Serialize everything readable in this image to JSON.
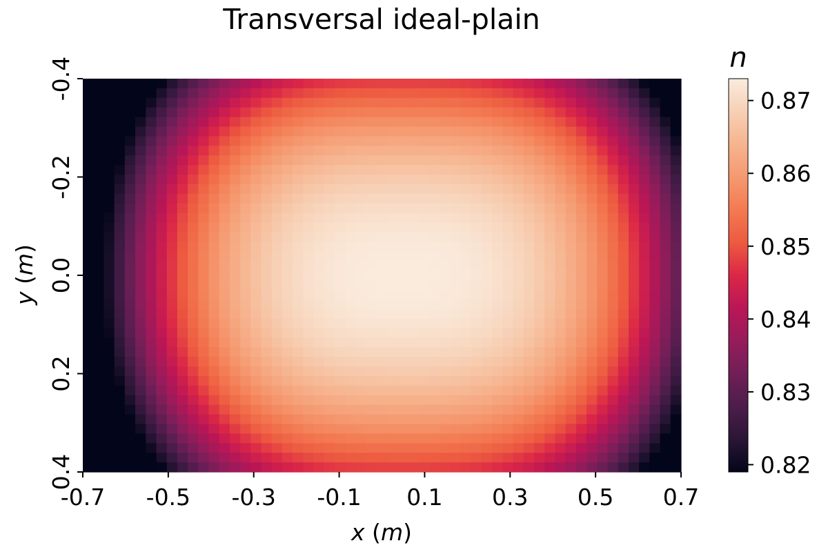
{
  "chart_data": {
    "type": "heatmap",
    "title": "Transversal ideal-plain",
    "xlabel": {
      "var": "x",
      "unit": "m"
    },
    "ylabel": {
      "var": "y",
      "unit": "m"
    },
    "x_range": [
      -0.7,
      0.7
    ],
    "y_range": [
      -0.4,
      0.4
    ],
    "y_inverted": true,
    "x_ticks": [
      -0.7,
      -0.5,
      -0.3,
      -0.1,
      0.1,
      0.3,
      0.5,
      0.7
    ],
    "x_tick_labels": [
      "-0.7",
      "-0.5",
      "-0.3",
      "-0.1",
      "0.1",
      "0.3",
      "0.5",
      "0.7"
    ],
    "y_ticks": [
      -0.4,
      -0.2,
      0.0,
      0.2,
      0.4
    ],
    "y_tick_labels": [
      "-0.4",
      "-0.2",
      "0.0",
      "0.2",
      "0.4"
    ],
    "grid": {
      "nx": 57,
      "ny": 41
    },
    "value_model": {
      "center": [
        0.05,
        0.0
      ],
      "max": 0.873,
      "x_coef": 0.054,
      "x_exp": 2.9,
      "y_coef": 0.026,
      "y_exp": 2.2,
      "note": "n(x,y) is approximately max - x_coef*|(x-cx)/0.7|^x_exp - y_coef*|(y-cy)/0.4|^y_exp, sampled on the grid"
    },
    "colorbar": {
      "label": "n",
      "min": 0.819,
      "max": 0.873,
      "ticks": [
        0.82,
        0.83,
        0.84,
        0.85,
        0.86,
        0.87
      ],
      "tick_labels": [
        "0.82",
        "0.83",
        "0.84",
        "0.85",
        "0.86",
        "0.87"
      ],
      "colormap": "rocket",
      "stops": [
        "#03051a",
        "#2a1636",
        "#4c1d4b",
        "#701f57",
        "#961c5b",
        "#ba1656",
        "#db2747",
        "#ed5a40",
        "#f37a52",
        "#f59970",
        "#f6b48f",
        "#f7d0b5",
        "#faebdd"
      ]
    }
  }
}
